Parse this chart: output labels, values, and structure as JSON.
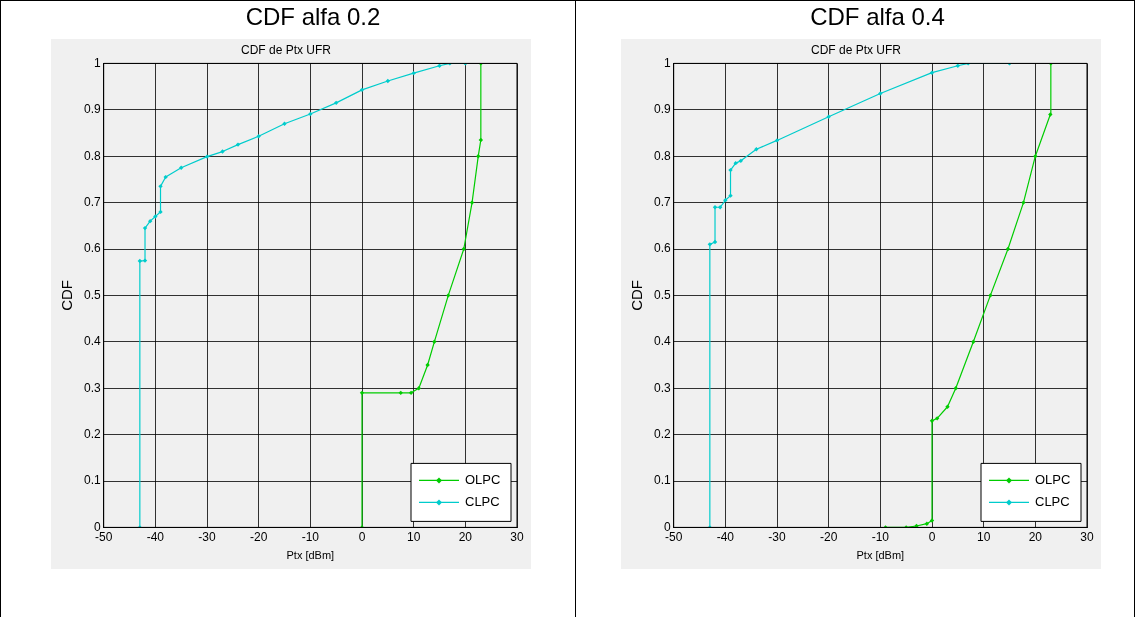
{
  "chart_data": [
    {
      "type": "line",
      "title": "CDF alfa 0.2",
      "subtitle": "CDF de Ptx UFR",
      "xlabel": "Ptx [dBm]",
      "ylabel": "CDF",
      "xlim": [
        -50,
        30
      ],
      "xticks": [
        -50,
        -40,
        -30,
        -20,
        -10,
        0,
        10,
        20,
        30
      ],
      "ylim": [
        0,
        1
      ],
      "yticks": [
        0,
        0.1,
        0.2,
        0.3,
        0.4,
        0.5,
        0.6,
        0.7,
        0.8,
        0.9,
        1
      ],
      "grid": true,
      "legend": "bottom right",
      "marker": "diamond",
      "line_style": "solid",
      "series": [
        {
          "name": "OLPC",
          "color": "#00cc00",
          "x": [
            0,
            0,
            7.5,
            9.5,
            11,
            12.7,
            14,
            16.7,
            19.7,
            21.3,
            22.5,
            23,
            23
          ],
          "values": [
            0,
            0.29,
            0.29,
            0.29,
            0.3,
            0.35,
            0.4,
            0.5,
            0.6,
            0.7,
            0.8,
            0.835,
            1
          ]
        },
        {
          "name": "CLPC",
          "color": "#00cccc",
          "x": [
            -43,
            -43,
            -42,
            -42,
            -41,
            -40,
            -39,
            -39,
            -38,
            -35,
            -30,
            -27,
            -24,
            -20,
            -15,
            -10,
            -5,
            0,
            5,
            10,
            15,
            17,
            20
          ],
          "values": [
            0,
            0.574,
            0.575,
            0.645,
            0.66,
            0.67,
            0.68,
            0.735,
            0.755,
            0.775,
            0.799,
            0.81,
            0.825,
            0.843,
            0.87,
            0.891,
            0.915,
            0.943,
            0.962,
            0.979,
            0.995,
            1,
            1
          ]
        }
      ]
    },
    {
      "type": "line",
      "title": "CDF alfa 0.4",
      "subtitle": "CDF de Ptx UFR",
      "xlabel": "Ptx [dBm]",
      "ylabel": "CDF",
      "xlim": [
        -50,
        30
      ],
      "xticks": [
        -50,
        -40,
        -30,
        -20,
        -10,
        0,
        10,
        20,
        30
      ],
      "ylim": [
        0,
        1
      ],
      "yticks": [
        0,
        0.1,
        0.2,
        0.3,
        0.4,
        0.5,
        0.6,
        0.7,
        0.8,
        0.9,
        1
      ],
      "grid": true,
      "legend": "bottom right",
      "marker": "diamond",
      "line_style": "solid",
      "series": [
        {
          "name": "OLPC",
          "color": "#00cc00",
          "x": [
            -9,
            -5,
            -3,
            -1,
            0,
            0,
            1,
            3,
            4.6,
            8,
            11.3,
            14.7,
            17.7,
            20,
            22.9,
            23
          ],
          "values": [
            0,
            0,
            0.003,
            0.008,
            0.015,
            0.23,
            0.235,
            0.26,
            0.3,
            0.4,
            0.5,
            0.6,
            0.7,
            0.8,
            0.89,
            1
          ]
        },
        {
          "name": "CLPC",
          "color": "#00cccc",
          "x": [
            -43,
            -43,
            -42,
            -42,
            -41,
            -40,
            -39,
            -39,
            -38,
            -37,
            -34,
            -30,
            -20,
            -10,
            0,
            5,
            7,
            15
          ],
          "values": [
            0,
            0.61,
            0.615,
            0.69,
            0.69,
            0.705,
            0.715,
            0.77,
            0.785,
            0.79,
            0.815,
            0.834,
            0.885,
            0.935,
            0.98,
            0.995,
            1,
            1
          ]
        }
      ]
    }
  ]
}
